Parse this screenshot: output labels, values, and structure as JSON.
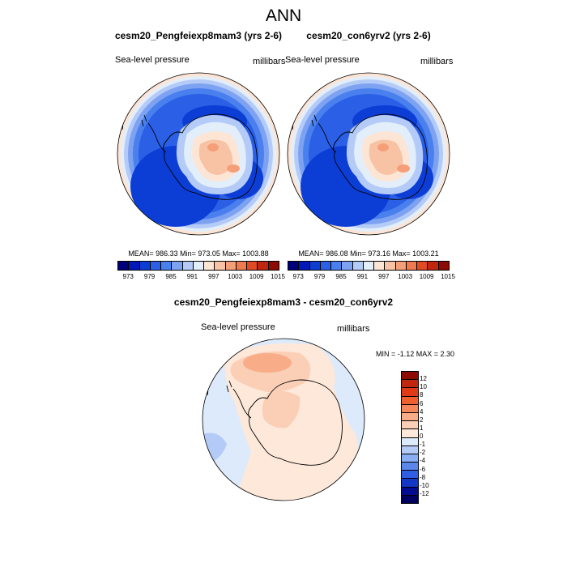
{
  "title": "ANN",
  "panels": [
    {
      "case_title": "cesm20_Pengfeiexp8mam3 (yrs 2-6)",
      "variable": "Sea-level pressure",
      "units": "millibars",
      "stats": "MEAN= 986.33  Min= 973.05  Max= 1003.88"
    },
    {
      "case_title": "cesm20_con6yrv2 (yrs 2-6)",
      "variable": "Sea-level pressure",
      "units": "millibars",
      "stats": "MEAN= 986.08  Min= 973.16  Max= 1003.21"
    }
  ],
  "pressure_colorbar": {
    "labels": [
      "973",
      "979",
      "985",
      "991",
      "997",
      "1003",
      "1009",
      "1015"
    ],
    "colors": [
      "#00007a",
      "#0018b8",
      "#0c3ed6",
      "#2a5fe6",
      "#4a80ee",
      "#7ea2f2",
      "#b4cbf7",
      "#e3eefb",
      "#fde5d6",
      "#f8c3a4",
      "#f59f78",
      "#ef7a4e",
      "#e04a24",
      "#c1260e",
      "#8c0c03"
    ]
  },
  "diff_panel": {
    "title": "cesm20_Pengfeiexp8mam3 - cesm20_con6yrv2",
    "variable": "Sea-level pressure",
    "units": "millibars",
    "stats": "MIN =  -1.12 MAX =   2.30"
  },
  "diff_colorbar": {
    "labels": [
      "12",
      "10",
      "8",
      "6",
      "4",
      "2",
      "1",
      "0",
      "-1",
      "-2",
      "-4",
      "-6",
      "-8",
      "-10",
      "-12"
    ],
    "colors": [
      "#8c0c03",
      "#c1260e",
      "#e03a16",
      "#f0602e",
      "#f5875a",
      "#f8ac88",
      "#fbcfb6",
      "#fde8da",
      "#dceafb",
      "#b4cbf7",
      "#8aaef3",
      "#5b86ec",
      "#2f5ee3",
      "#1537c6",
      "#020c90",
      "#00005e"
    ]
  },
  "chart_data": [
    {
      "type": "heatmap",
      "projection": "south-polar-stereographic",
      "title": "cesm20_Pengfeiexp8mam3 (yrs 2-6)",
      "variable": "Sea-level pressure",
      "units": "millibars",
      "mean": 986.33,
      "min": 973.05,
      "max": 1003.88,
      "levels": [
        973,
        976,
        979,
        982,
        985,
        988,
        991,
        994,
        997,
        1000,
        1003,
        1006,
        1009,
        1012,
        1015
      ]
    },
    {
      "type": "heatmap",
      "projection": "south-polar-stereographic",
      "title": "cesm20_con6yrv2 (yrs 2-6)",
      "variable": "Sea-level pressure",
      "units": "millibars",
      "mean": 986.08,
      "min": 973.16,
      "max": 1003.21,
      "levels": [
        973,
        976,
        979,
        982,
        985,
        988,
        991,
        994,
        997,
        1000,
        1003,
        1006,
        1009,
        1012,
        1015
      ]
    },
    {
      "type": "heatmap",
      "projection": "south-polar-stereographic",
      "title": "cesm20_Pengfeiexp8mam3 - cesm20_con6yrv2",
      "variable": "Sea-level pressure",
      "units": "millibars",
      "min": -1.12,
      "max": 2.3,
      "levels": [
        -12,
        -10,
        -8,
        -6,
        -4,
        -2,
        -1,
        0,
        1,
        2,
        4,
        6,
        8,
        10,
        12
      ]
    }
  ]
}
